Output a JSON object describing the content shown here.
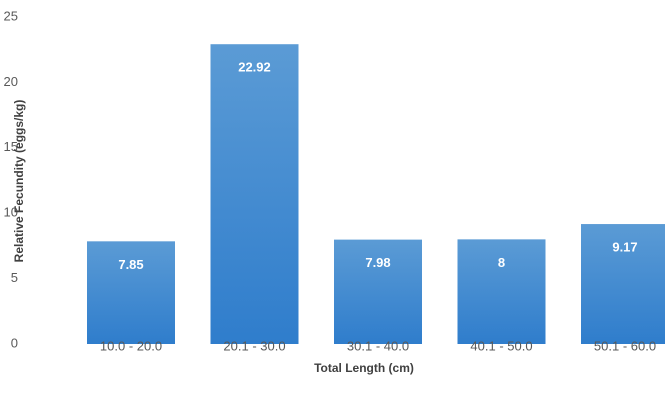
{
  "chart_data": {
    "type": "bar",
    "title": "",
    "xlabel": "Total Length (cm)",
    "ylabel": "Relative Fecundity (eggs/kg)",
    "categories": [
      "10.0 - 20.0",
      "20.1 - 30.0",
      "30.1 - 40.0",
      "40.1 - 50.0",
      "50.1 - 60.0"
    ],
    "values": [
      7.85,
      22.92,
      7.98,
      8,
      9.17
    ],
    "data_labels": [
      "7.85",
      "22.92",
      "7.98",
      "8",
      "9.17"
    ],
    "ylim": [
      0,
      25
    ],
    "yticks": [
      0,
      5,
      10,
      15,
      20,
      25
    ],
    "ytick_labels": [
      "0",
      "5",
      "10",
      "15",
      "20",
      "25"
    ],
    "grid": false,
    "legend": "none",
    "colors": {
      "bar_top": "#5b9bd5",
      "bar_bottom": "#2f7dcc",
      "data_label": "#ffffff"
    }
  }
}
